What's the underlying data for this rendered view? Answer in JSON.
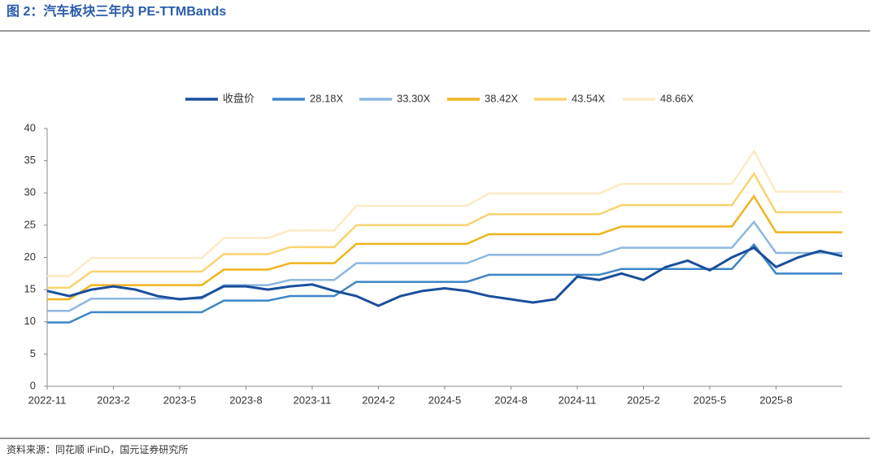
{
  "chart_data": {
    "type": "line",
    "title": "图 2：汽车板块三年内 PE-TTMBands",
    "source": "资料来源：同花顺 iFinD，国元证券研究所",
    "categories": [
      "2022-11",
      null,
      null,
      "2023-2",
      null,
      null,
      "2023-5",
      null,
      null,
      "2023-8",
      null,
      null,
      "2023-11",
      null,
      null,
      "2024-2",
      null,
      null,
      "2024-5",
      null,
      null,
      "2024-8",
      null,
      null,
      "2024-11",
      null,
      null,
      "2025-2",
      null,
      null,
      "2025-5",
      null,
      null,
      "2025-8",
      null,
      null,
      null
    ],
    "series": [
      {
        "name": "收盘价",
        "color": "#1a4f9c",
        "values": [
          14.8,
          14,
          15,
          15.5,
          15,
          14,
          13.5,
          13.8,
          15.5,
          15.5,
          15,
          15.5,
          15.8,
          14.8,
          14,
          12.5,
          14,
          14.8,
          15.2,
          14.8,
          14,
          13.5,
          13,
          13.5,
          17,
          16.5,
          17.5,
          16.5,
          18.5,
          19.5,
          18,
          20,
          21.5,
          18.5,
          20,
          21,
          20.2
        ]
      },
      {
        "name": "28.18X",
        "color": "#3d85c6",
        "values": [
          9.9,
          9.9,
          11.5,
          11.5,
          11.5,
          11.5,
          11.5,
          11.5,
          13.3,
          13.3,
          13.3,
          14.0,
          14.0,
          14.0,
          16.2,
          16.2,
          16.2,
          16.2,
          16.2,
          16.2,
          17.3,
          17.3,
          17.3,
          17.3,
          17.3,
          17.3,
          18.2,
          18.2,
          18.2,
          18.2,
          18.2,
          18.2,
          22.0,
          17.5,
          17.5,
          17.5,
          17.5
        ]
      },
      {
        "name": "33.30X",
        "color": "#8db7e0",
        "values": [
          11.7,
          11.7,
          13.6,
          13.6,
          13.6,
          13.6,
          13.6,
          13.6,
          15.7,
          15.7,
          15.7,
          16.5,
          16.5,
          16.5,
          19.1,
          19.1,
          19.1,
          19.1,
          19.1,
          19.1,
          20.4,
          20.4,
          20.4,
          20.4,
          20.4,
          20.4,
          21.5,
          21.5,
          21.5,
          21.5,
          21.5,
          21.5,
          25.5,
          20.7,
          20.7,
          20.7,
          20.7
        ]
      },
      {
        "name": "38.42X",
        "color": "#f0b41c",
        "values": [
          13.5,
          13.5,
          15.7,
          15.7,
          15.7,
          15.7,
          15.7,
          15.7,
          18.1,
          18.1,
          18.1,
          19.1,
          19.1,
          19.1,
          22.1,
          22.1,
          22.1,
          22.1,
          22.1,
          22.1,
          23.6,
          23.6,
          23.6,
          23.6,
          23.6,
          23.6,
          24.8,
          24.8,
          24.8,
          24.8,
          24.8,
          24.8,
          29.5,
          23.9,
          23.9,
          23.9,
          23.9
        ]
      },
      {
        "name": "43.54X",
        "color": "#f8d36e",
        "values": [
          15.3,
          15.3,
          17.8,
          17.8,
          17.8,
          17.8,
          17.8,
          17.8,
          20.5,
          20.5,
          20.5,
          21.6,
          21.6,
          21.6,
          25.0,
          25.0,
          25.0,
          25.0,
          25.0,
          25.0,
          26.7,
          26.7,
          26.7,
          26.7,
          26.7,
          26.7,
          28.1,
          28.1,
          28.1,
          28.1,
          28.1,
          28.1,
          33,
          27.0,
          27.0,
          27.0,
          27.0
        ]
      },
      {
        "name": "48.66X",
        "color": "#fdeac4",
        "values": [
          17.1,
          17.1,
          19.9,
          19.9,
          19.9,
          19.9,
          19.9,
          19.9,
          23.0,
          23.0,
          23.0,
          24.2,
          24.2,
          24.2,
          28.0,
          28.0,
          28.0,
          28.0,
          28.0,
          28.0,
          29.9,
          29.9,
          29.9,
          29.9,
          29.9,
          29.9,
          31.4,
          31.4,
          31.4,
          31.4,
          31.4,
          31.4,
          36.5,
          30.2,
          30.2,
          30.2,
          30.2
        ]
      }
    ],
    "ylim": [
      0,
      40
    ],
    "yticks": [
      0,
      5,
      10,
      15,
      20,
      25,
      30,
      35,
      40
    ],
    "grid": false
  }
}
